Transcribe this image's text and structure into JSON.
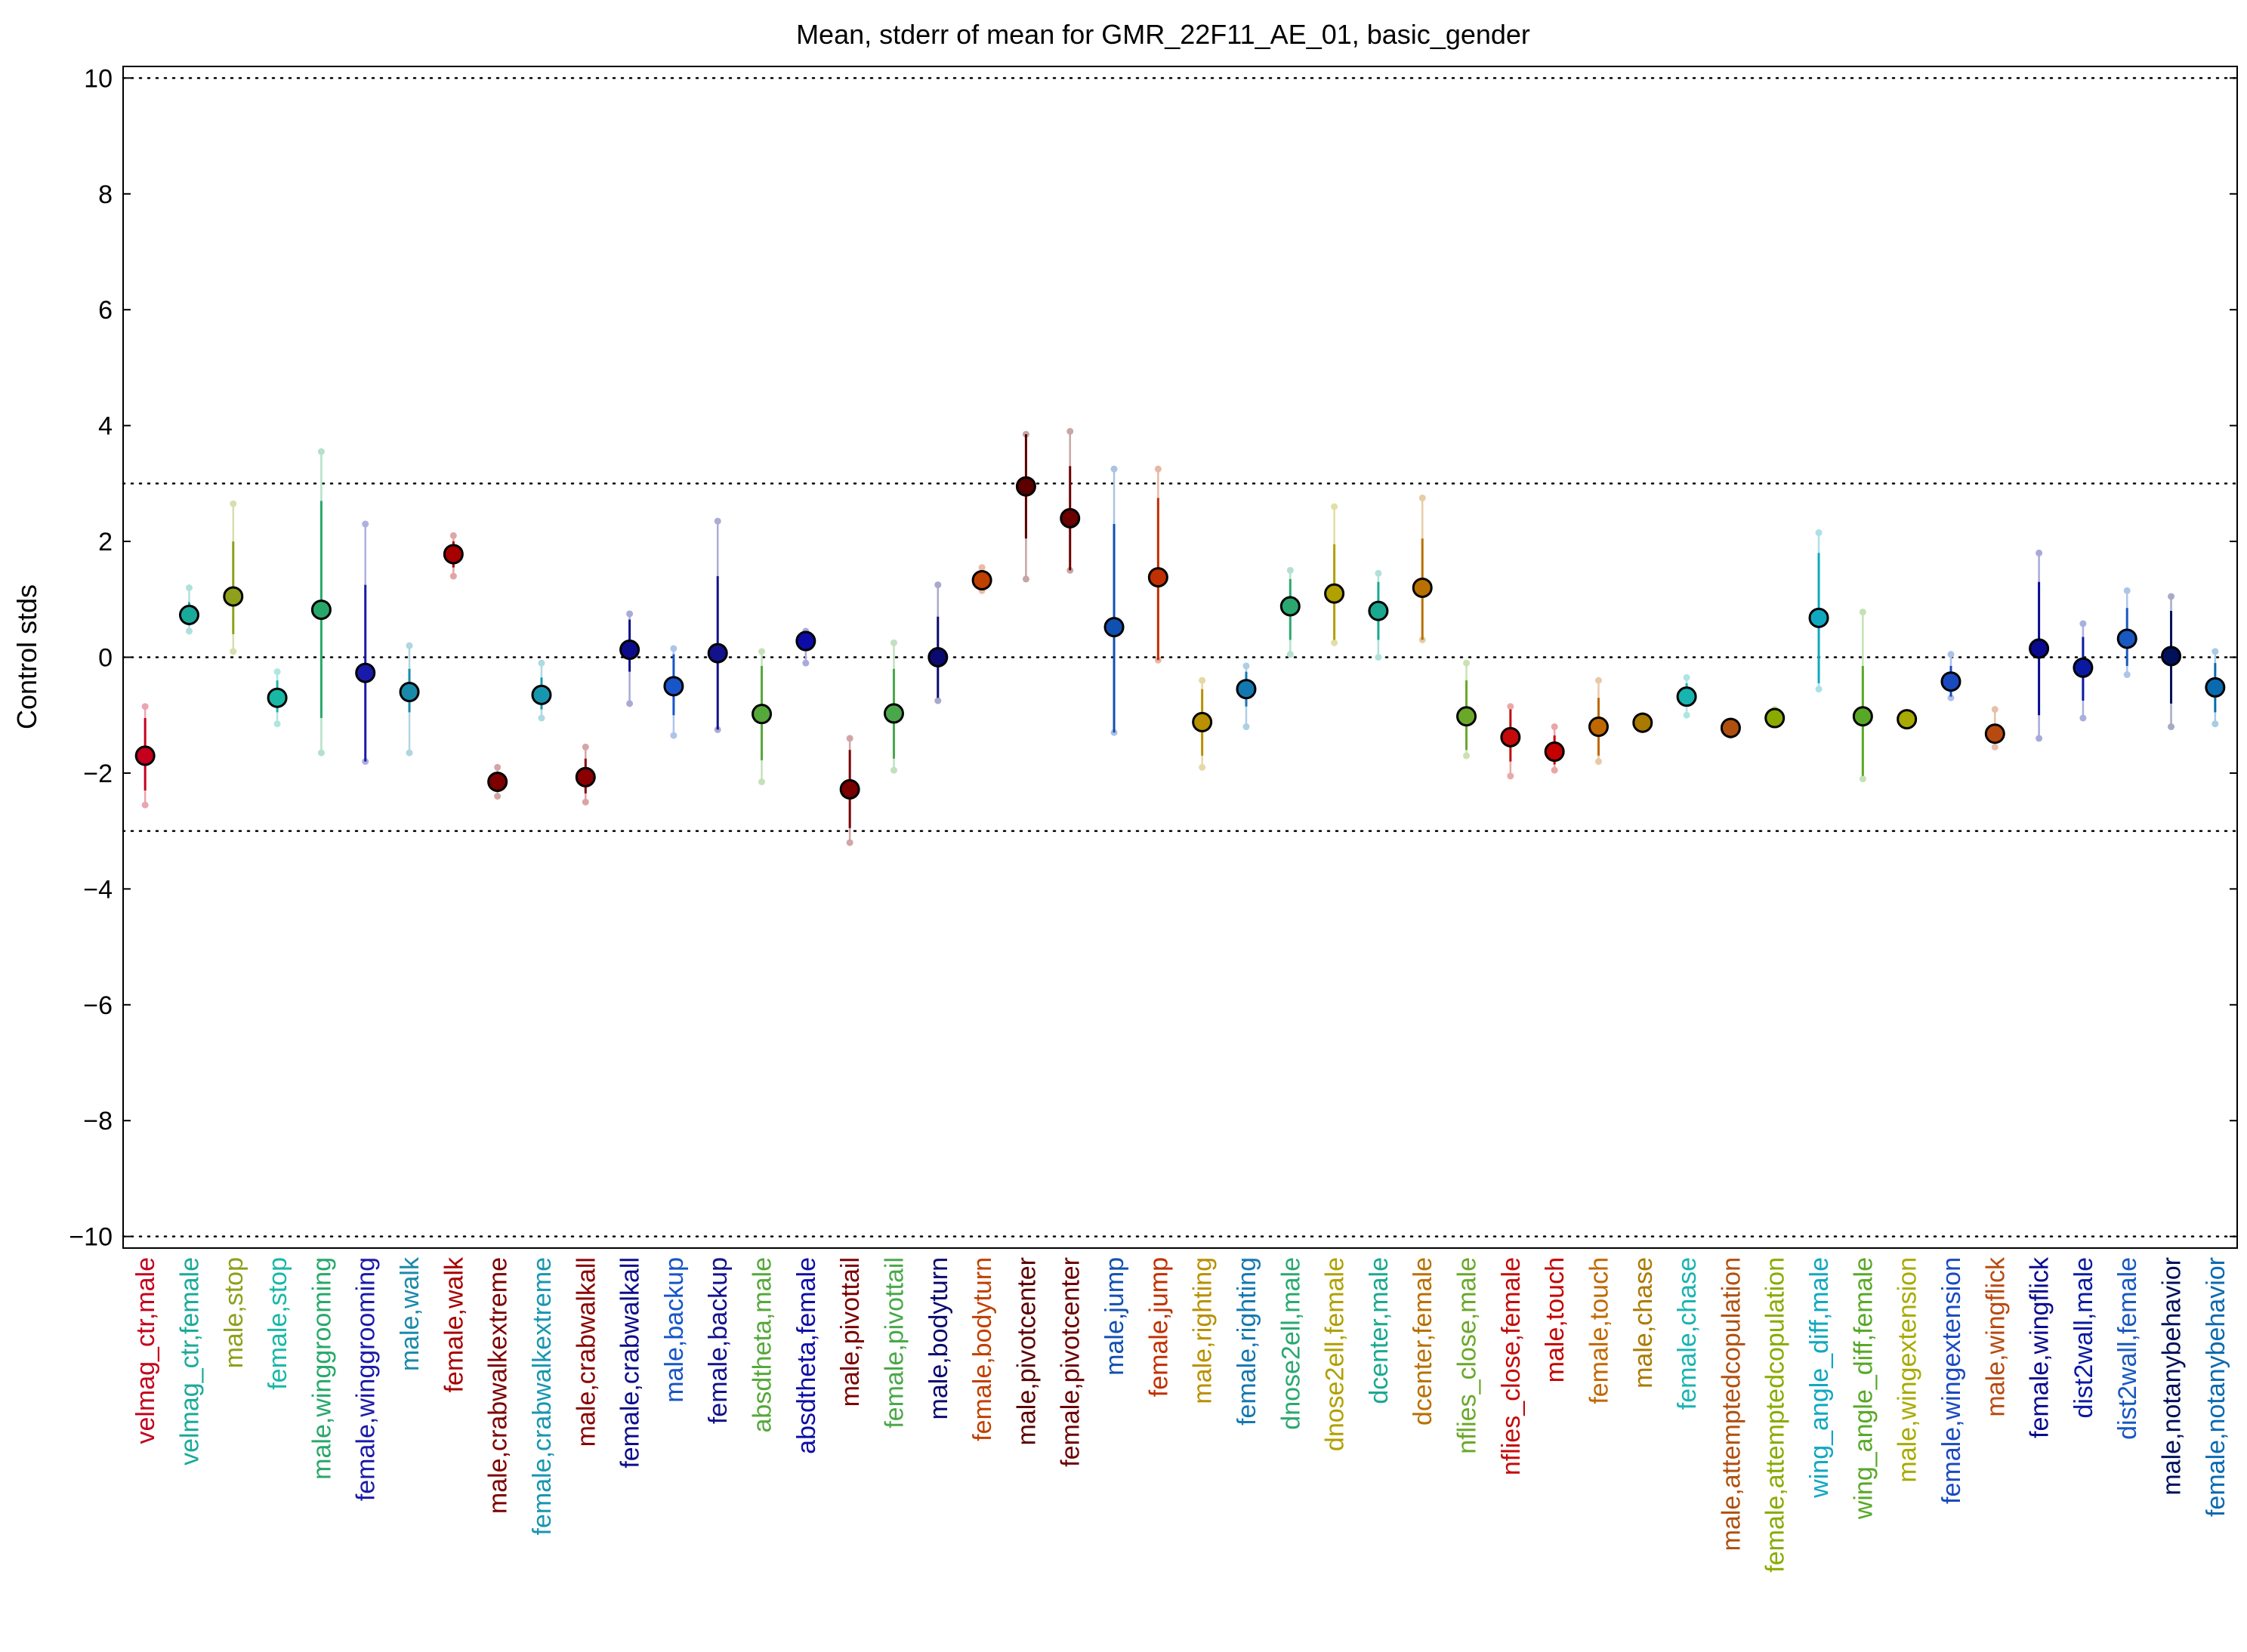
{
  "chart_data": {
    "type": "scatter",
    "title": "Mean, stderr of mean for GMR_22F11_AE_01, basic_gender",
    "xlabel": "",
    "ylabel": "Control stds",
    "ylim": [
      -10.2,
      10.2
    ],
    "yticks": [
      10,
      8,
      6,
      4,
      2,
      0,
      -2,
      -4,
      -6,
      -8,
      -10
    ],
    "ytick_labels": [
      "10",
      "8",
      "6",
      "4",
      "2",
      "0",
      "−2",
      "−4",
      "−6",
      "−8",
      "−10"
    ],
    "reference_lines": [
      10,
      3,
      0,
      -3,
      -10
    ],
    "grid": false,
    "legend": "none",
    "categories": [
      "velmag_ctr,male",
      "velmag_ctr,female",
      "male,stop",
      "female,stop",
      "male,winggrooming",
      "female,winggrooming",
      "male,walk",
      "female,walk",
      "male,crabwalkextreme",
      "female,crabwalkextreme",
      "male,crabwalkall",
      "female,crabwalkall",
      "male,backup",
      "female,backup",
      "absdtheta,male",
      "absdtheta,female",
      "male,pivottail",
      "female,pivottail",
      "male,bodyturn",
      "female,bodyturn",
      "male,pivotcenter",
      "female,pivotcenter",
      "male,jump",
      "female,jump",
      "male,righting",
      "female,righting",
      "dnose2ell,male",
      "dnose2ell,female",
      "dcenter,male",
      "dcenter,female",
      "nflies_close,male",
      "nflies_close,female",
      "male,touch",
      "female,touch",
      "male,chase",
      "female,chase",
      "male,attemptedcopulation",
      "female,attemptedcopulation",
      "wing_angle_diff,male",
      "wing_angle_diff,female",
      "male,wingextension",
      "female,wingextension",
      "male,wingflick",
      "female,wingflick",
      "dist2wall,male",
      "dist2wall,female",
      "male,notanybehavior",
      "female,notanybehavior"
    ],
    "mean": [
      -1.7,
      0.73,
      1.05,
      -0.7,
      0.82,
      -0.27,
      -0.6,
      1.78,
      -2.15,
      -0.65,
      -2.07,
      0.13,
      -0.5,
      0.07,
      -0.98,
      0.28,
      -2.28,
      -0.97,
      0.0,
      1.33,
      2.95,
      2.4,
      0.52,
      1.38,
      -1.12,
      -0.55,
      0.88,
      1.1,
      0.8,
      1.2,
      -1.02,
      -1.38,
      -1.63,
      -1.2,
      -1.13,
      -0.68,
      -1.22,
      -1.05,
      0.68,
      -1.02,
      -1.07,
      -0.42,
      -1.32,
      0.15,
      -0.18,
      0.32,
      0.02,
      -0.52
    ],
    "stderr_low": [
      -2.3,
      0.55,
      0.4,
      -0.95,
      -1.05,
      -1.8,
      -0.95,
      1.55,
      -2.3,
      -0.9,
      -2.35,
      -0.25,
      -1.0,
      -1.25,
      -1.78,
      0.2,
      -2.95,
      -1.75,
      -0.7,
      1.2,
      2.05,
      1.5,
      -1.3,
      -0.05,
      -1.7,
      -0.85,
      0.3,
      0.3,
      0.3,
      0.3,
      -1.6,
      -1.8,
      -1.85,
      -1.7,
      -1.2,
      -0.85,
      -1.3,
      -1.1,
      -0.45,
      -2.05,
      -1.13,
      -0.68,
      -1.45,
      -1.0,
      -0.75,
      -0.15,
      -0.8,
      -0.95
    ],
    "stderr_high": [
      -1.05,
      0.95,
      2.0,
      -0.4,
      2.7,
      1.25,
      -0.2,
      2.0,
      -2.0,
      -0.35,
      -1.75,
      0.65,
      0.05,
      1.4,
      -0.15,
      0.4,
      -1.6,
      -0.2,
      0.7,
      1.5,
      3.85,
      3.3,
      2.3,
      2.75,
      -0.55,
      -0.25,
      1.35,
      1.95,
      1.3,
      2.05,
      -0.4,
      -0.9,
      -1.35,
      -0.7,
      -1.05,
      -0.45,
      -1.15,
      -0.95,
      1.8,
      -0.15,
      -1.0,
      -0.15,
      -1.15,
      1.3,
      0.35,
      0.85,
      0.8,
      -0.1
    ],
    "range_low": [
      -2.55,
      0.45,
      0.1,
      -1.15,
      -1.65,
      -1.8,
      -1.65,
      1.4,
      -2.4,
      -1.05,
      -2.5,
      -0.8,
      -1.35,
      -1.25,
      -2.15,
      -0.1,
      -3.2,
      -1.95,
      -0.75,
      1.15,
      1.35,
      1.5,
      -1.3,
      -0.05,
      -1.9,
      -1.2,
      0.05,
      0.25,
      0.0,
      0.3,
      -1.7,
      -2.05,
      -1.95,
      -1.8,
      -1.25,
      -1.0,
      -1.35,
      -1.15,
      -0.55,
      -2.1,
      -1.15,
      -0.7,
      -1.55,
      -1.4,
      -1.05,
      -0.3,
      -1.2,
      -1.15
    ],
    "range_high": [
      -0.85,
      1.2,
      2.65,
      -0.25,
      3.55,
      2.3,
      0.2,
      2.1,
      -1.9,
      -0.1,
      -1.55,
      0.75,
      0.15,
      2.35,
      0.1,
      0.45,
      -1.4,
      0.25,
      1.25,
      1.55,
      3.85,
      3.9,
      3.25,
      3.25,
      -0.4,
      -0.15,
      1.5,
      2.6,
      1.45,
      2.75,
      -0.1,
      -0.85,
      -1.2,
      -0.4,
      -1.0,
      -0.35,
      -1.1,
      -0.9,
      2.15,
      0.78,
      -0.95,
      0.05,
      -0.9,
      1.8,
      0.58,
      1.15,
      1.05,
      0.1
    ],
    "colors": [
      "#c4001c",
      "#1aaa9a",
      "#8ea01c",
      "#18b7a6",
      "#27a86a",
      "#1a1aaa",
      "#1a8aaa",
      "#a60000",
      "#7d0000",
      "#1896b0",
      "#8a0000",
      "#0c0c8a",
      "#1755c8",
      "#12128c",
      "#55a83a",
      "#0d0da6",
      "#7a0000",
      "#4aa84a",
      "#0a0a70",
      "#c04000",
      "#5a0000",
      "#6b0000",
      "#1050b0",
      "#c03000",
      "#b89000",
      "#1478b0",
      "#2aa870",
      "#b0a000",
      "#1aa890",
      "#b87000",
      "#6aa82a",
      "#c40a0a",
      "#c40000",
      "#c06800",
      "#aa7a00",
      "#18b4b0",
      "#b05010",
      "#8aaa00",
      "#10a8c0",
      "#58a828",
      "#a8aa00",
      "#1a4ac0",
      "#b84a10",
      "#0a0a90",
      "#0a1aa0",
      "#1858c0",
      "#00105a",
      "#0a6ab0"
    ]
  }
}
